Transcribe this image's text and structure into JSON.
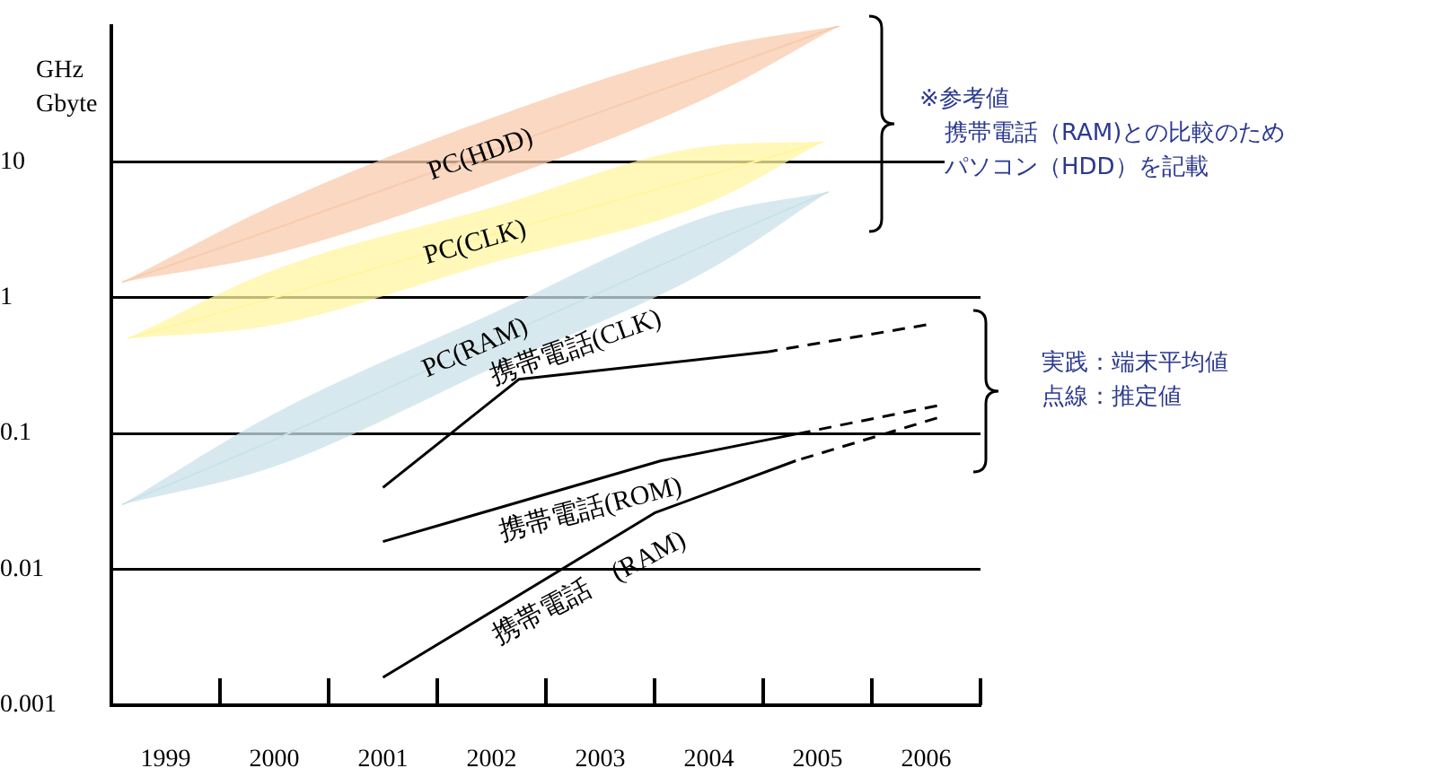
{
  "chart_data": {
    "type": "line",
    "ylabel": "GHz\nGbyte",
    "log": "y",
    "grid": "y",
    "legend": false,
    "marker": "none",
    "xlim": [
      1998.5,
      2006.5
    ],
    "xticks": [
      1999,
      2000,
      2001,
      2002,
      2003,
      2004,
      2005,
      2006
    ],
    "ylim": [
      0.001,
      100
    ],
    "yticks": [
      0.001,
      0.01,
      0.1,
      1,
      10
    ],
    "series": [
      {
        "name": "PC(HDD)",
        "color": "#f8cbad",
        "x": [
          1998.6,
          2000,
          2002,
          2004,
          2005.2
        ],
        "values": [
          1.3,
          3.2,
          12,
          45,
          100
        ],
        "lower": [
          1.3,
          2.1,
          7,
          30,
          100
        ],
        "upper": [
          1.3,
          4.8,
          21,
          68,
          100
        ]
      },
      {
        "name": "PC(CLK)",
        "color": "#fff6a0",
        "x": [
          1998.65,
          2000,
          2002,
          2004,
          2005.05
        ],
        "values": [
          0.5,
          1,
          2.9,
          8,
          14
        ],
        "lower": [
          0.5,
          0.63,
          1.8,
          5,
          14
        ],
        "upper": [
          0.5,
          1.6,
          4.6,
          13,
          14
        ]
      },
      {
        "name": "PC(RAM)",
        "color": "#c9e2ea",
        "x": [
          1998.6,
          2000,
          2002,
          2004,
          2005.1
        ],
        "values": [
          0.03,
          0.09,
          0.48,
          2.5,
          6
        ],
        "lower": [
          0.03,
          0.057,
          0.3,
          1.6,
          6
        ],
        "upper": [
          0.03,
          0.14,
          0.76,
          4,
          6
        ]
      },
      {
        "name": "携帯電話(CLK)",
        "color": "#000000",
        "x": [
          2001,
          2002.25,
          2004.55
        ],
        "values": [
          0.04,
          0.25,
          0.4
        ]
      },
      {
        "color": "#000000",
        "line_style": "dashed",
        "x": [
          2004.55,
          2006
        ],
        "values": [
          0.4,
          0.63
        ]
      },
      {
        "name": "携帯電話(ROM)",
        "color": "#000000",
        "x": [
          2001,
          2003.56,
          2004.83
        ],
        "values": [
          0.016,
          0.063,
          0.1
        ]
      },
      {
        "color": "#000000",
        "line_style": "dashed",
        "x": [
          2004.83,
          2006.1
        ],
        "values": [
          0.1,
          0.16
        ]
      },
      {
        "name": "携帯電話　(RAM)",
        "color": "#000000",
        "x": [
          2001,
          2003.5,
          2004.8
        ],
        "values": [
          0.0016,
          0.026,
          0.063
        ]
      },
      {
        "color": "#000000",
        "line_style": "dashed",
        "x": [
          2004.8,
          2006.1
        ],
        "values": [
          0.063,
          0.13
        ]
      }
    ],
    "annotations": [
      "※参考値",
      "携帯電話（RAM)との比較のため",
      "パソコン（HDD）を記載",
      "実践：端末平均値",
      "点線：推定値"
    ]
  }
}
